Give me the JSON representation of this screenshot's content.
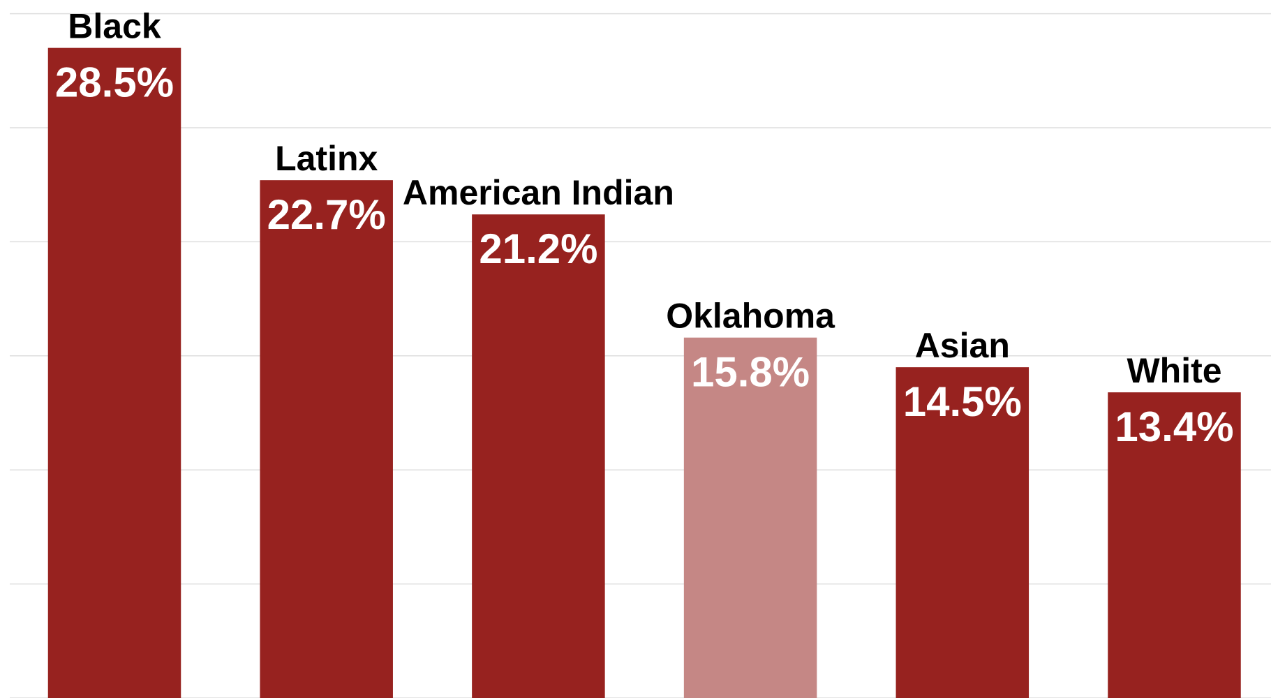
{
  "chart_data": {
    "type": "bar",
    "categories": [
      "Black",
      "Latinx",
      "American Indian",
      "Oklahoma",
      "Asian",
      "White"
    ],
    "values": [
      28.5,
      22.7,
      21.2,
      15.8,
      14.5,
      13.4
    ],
    "value_labels": [
      "28.5%",
      "22.7%",
      "21.2%",
      "15.8%",
      "14.5%",
      "13.4%"
    ],
    "colors": [
      "#97221f",
      "#97221f",
      "#97221f",
      "#c58785",
      "#97221f",
      "#97221f"
    ],
    "ylim": [
      0,
      30.6
    ],
    "yticks": [
      0,
      5,
      10,
      15,
      20,
      25,
      30
    ],
    "grid": true
  }
}
